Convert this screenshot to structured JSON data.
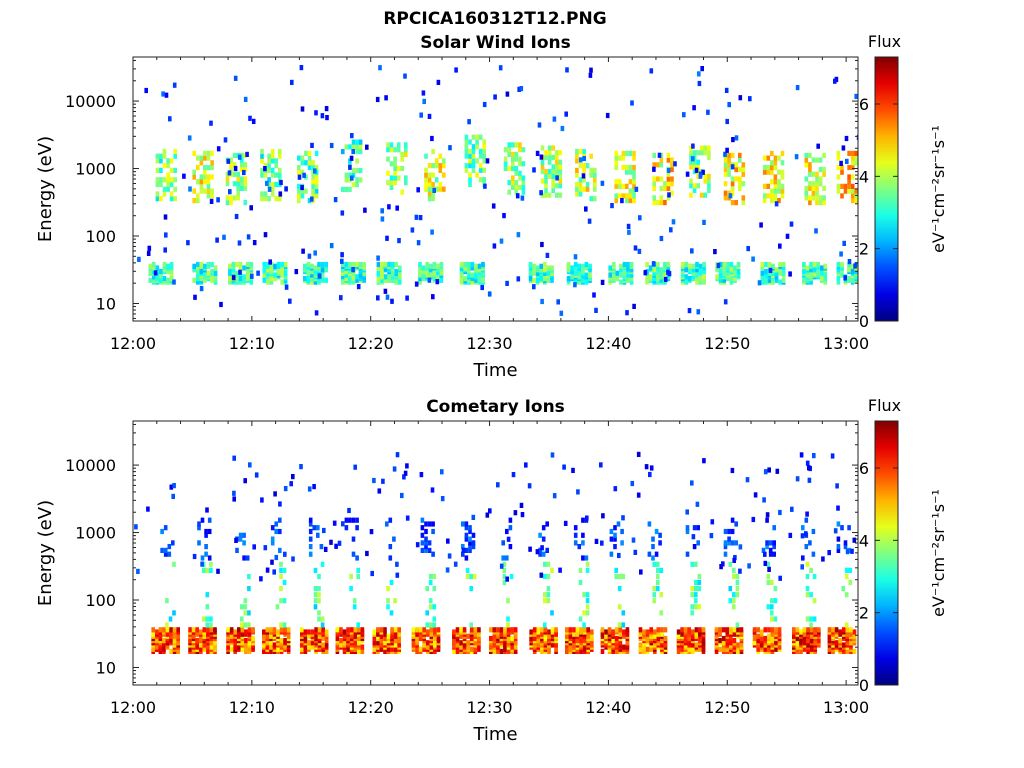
{
  "figure": {
    "title": "RPCICA160312T12.PNG"
  },
  "chart_data": [
    {
      "type": "heatmap",
      "title": "Solar Wind Ions",
      "xlabel": "Time",
      "ylabel": "Energy (eV)",
      "x_ticks": [
        "12:00",
        "12:10",
        "12:20",
        "12:30",
        "12:40",
        "12:50",
        "13:00"
      ],
      "x_range_minutes": [
        0,
        61
      ],
      "y_ticks": [
        "10",
        "100",
        "1000",
        "10000"
      ],
      "y_scale": "log",
      "y_range": [
        5.5,
        45000
      ],
      "colorbar": {
        "label": "Flux",
        "units": "eV⁻¹cm⁻²sr⁻¹s⁻¹",
        "ticks": [
          "0",
          "2",
          "4",
          "6"
        ],
        "range": [
          0,
          7.3
        ],
        "colormap": "jet"
      },
      "bursts": [
        {
          "t": 2.8,
          "e": 800,
          "flux": 3.6
        },
        {
          "t": 5.9,
          "e": 750,
          "flux": 4.3
        },
        {
          "t": 8.7,
          "e": 700,
          "flux": 3.8
        },
        {
          "t": 11.6,
          "e": 800,
          "flux": 3.4
        },
        {
          "t": 14.7,
          "e": 750,
          "flux": 3.5
        },
        {
          "t": 18.4,
          "e": 1100,
          "flux": 3.2
        },
        {
          "t": 22.2,
          "e": 1000,
          "flux": 3.7
        },
        {
          "t": 25.4,
          "e": 800,
          "flux": 4.2
        },
        {
          "t": 28.8,
          "e": 1300,
          "flux": 3.6
        },
        {
          "t": 32.1,
          "e": 1000,
          "flux": 3.9
        },
        {
          "t": 35.2,
          "e": 900,
          "flux": 3.9
        },
        {
          "t": 38.1,
          "e": 800,
          "flux": 4.1
        },
        {
          "t": 41.4,
          "e": 750,
          "flux": 4.3
        },
        {
          "t": 44.6,
          "e": 700,
          "flux": 4.6
        },
        {
          "t": 47.7,
          "e": 900,
          "flux": 3.8
        },
        {
          "t": 50.6,
          "e": 700,
          "flux": 4.5
        },
        {
          "t": 53.9,
          "e": 750,
          "flux": 4.5
        },
        {
          "t": 57.4,
          "e": 700,
          "flux": 4.4
        },
        {
          "t": 60.1,
          "e": 750,
          "flux": 4.8
        }
      ],
      "low_band": {
        "e": 28,
        "flux": 3.2,
        "times": [
          2.3,
          6.0,
          9.0,
          11.9,
          15.3,
          18.5,
          21.5,
          25.0,
          28.5,
          34.3,
          37.5,
          41.0,
          44.1,
          47.1,
          50.0,
          53.8,
          57.3,
          60.2
        ]
      }
    },
    {
      "type": "heatmap",
      "title": "Cometary Ions",
      "xlabel": "Time",
      "ylabel": "Energy (eV)",
      "x_ticks": [
        "12:00",
        "12:10",
        "12:20",
        "12:30",
        "12:40",
        "12:50",
        "13:00"
      ],
      "x_range_minutes": [
        0,
        61
      ],
      "y_ticks": [
        "10",
        "100",
        "1000",
        "10000"
      ],
      "y_scale": "log",
      "y_range": [
        5.5,
        45000
      ],
      "colorbar": {
        "label": "Flux",
        "units": "eV⁻¹cm⁻²sr⁻¹s⁻¹",
        "ticks": [
          "0",
          "2",
          "4",
          "6"
        ],
        "range": [
          0,
          7.3
        ],
        "colormap": "jet"
      },
      "low_band": {
        "e": 25,
        "flux": 5.8,
        "times": [
          2.7,
          5.8,
          9.0,
          12.0,
          15.2,
          18.2,
          21.3,
          24.6,
          28.0,
          31.1,
          34.5,
          37.5,
          40.5,
          43.7,
          46.9,
          50.1,
          53.3,
          56.6,
          59.6
        ]
      },
      "mid_band": {
        "e": 120,
        "flux": 3.3
      },
      "high_band": {
        "e": 800,
        "flux": 1.4
      }
    }
  ]
}
